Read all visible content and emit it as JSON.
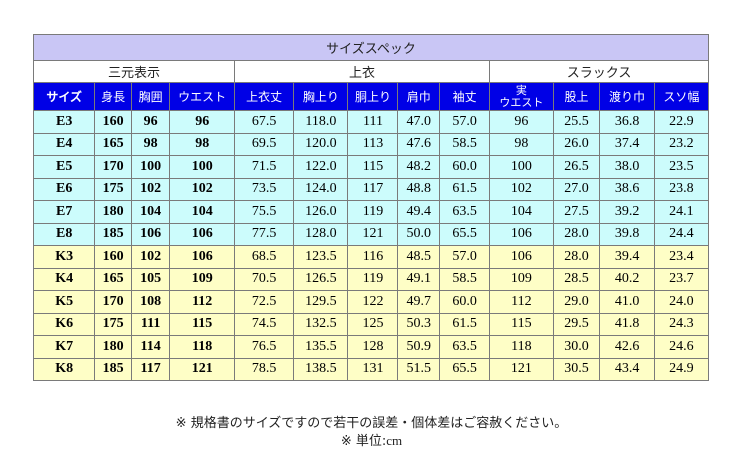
{
  "table": {
    "title": "サイズスペック",
    "groups": [
      "三元表示",
      "上衣",
      "スラックス"
    ],
    "columns": [
      "サイズ",
      "身長",
      "胸囲",
      "ウエスト",
      "上衣丈",
      "胸上り",
      "胴上り",
      "肩巾",
      "袖丈",
      [
        "実",
        "ウエスト"
      ],
      "股上",
      "渡り巾",
      "スソ幅"
    ],
    "rows": [
      [
        "E3",
        "160",
        "96",
        "96",
        "67.5",
        "118.0",
        "111",
        "47.0",
        "57.0",
        "96",
        "25.5",
        "36.8",
        "22.9"
      ],
      [
        "E4",
        "165",
        "98",
        "98",
        "69.5",
        "120.0",
        "113",
        "47.6",
        "58.5",
        "98",
        "26.0",
        "37.4",
        "23.2"
      ],
      [
        "E5",
        "170",
        "100",
        "100",
        "71.5",
        "122.0",
        "115",
        "48.2",
        "60.0",
        "100",
        "26.5",
        "38.0",
        "23.5"
      ],
      [
        "E6",
        "175",
        "102",
        "102",
        "73.5",
        "124.0",
        "117",
        "48.8",
        "61.5",
        "102",
        "27.0",
        "38.6",
        "23.8"
      ],
      [
        "E7",
        "180",
        "104",
        "104",
        "75.5",
        "126.0",
        "119",
        "49.4",
        "63.5",
        "104",
        "27.5",
        "39.2",
        "24.1"
      ],
      [
        "E8",
        "185",
        "106",
        "106",
        "77.5",
        "128.0",
        "121",
        "50.0",
        "65.5",
        "106",
        "28.0",
        "39.8",
        "24.4"
      ],
      [
        "K3",
        "160",
        "102",
        "106",
        "68.5",
        "123.5",
        "116",
        "48.5",
        "57.0",
        "106",
        "28.0",
        "39.4",
        "23.4"
      ],
      [
        "K4",
        "165",
        "105",
        "109",
        "70.5",
        "126.5",
        "119",
        "49.1",
        "58.5",
        "109",
        "28.5",
        "40.2",
        "23.7"
      ],
      [
        "K5",
        "170",
        "108",
        "112",
        "72.5",
        "129.5",
        "122",
        "49.7",
        "60.0",
        "112",
        "29.0",
        "41.0",
        "24.0"
      ],
      [
        "K6",
        "175",
        "111",
        "115",
        "74.5",
        "132.5",
        "125",
        "50.3",
        "61.5",
        "115",
        "29.5",
        "41.8",
        "24.3"
      ],
      [
        "K7",
        "180",
        "114",
        "118",
        "76.5",
        "135.5",
        "128",
        "50.9",
        "63.5",
        "118",
        "30.0",
        "42.6",
        "24.6"
      ],
      [
        "K8",
        "185",
        "117",
        "121",
        "78.5",
        "138.5",
        "131",
        "51.5",
        "65.5",
        "121",
        "30.5",
        "43.4",
        "24.9"
      ]
    ]
  },
  "notes": {
    "line1": "※ 規格書のサイズですので若干の誤差・個体差はご容赦ください。",
    "line2_prefix": "※ 単位:",
    "line2_unit": "cm"
  },
  "colors": {
    "title_bg": "#c9c6f5",
    "header_bg": "#0000e6",
    "e_row_bg": "#ccfcfc",
    "k_row_bg": "#fefec6"
  }
}
